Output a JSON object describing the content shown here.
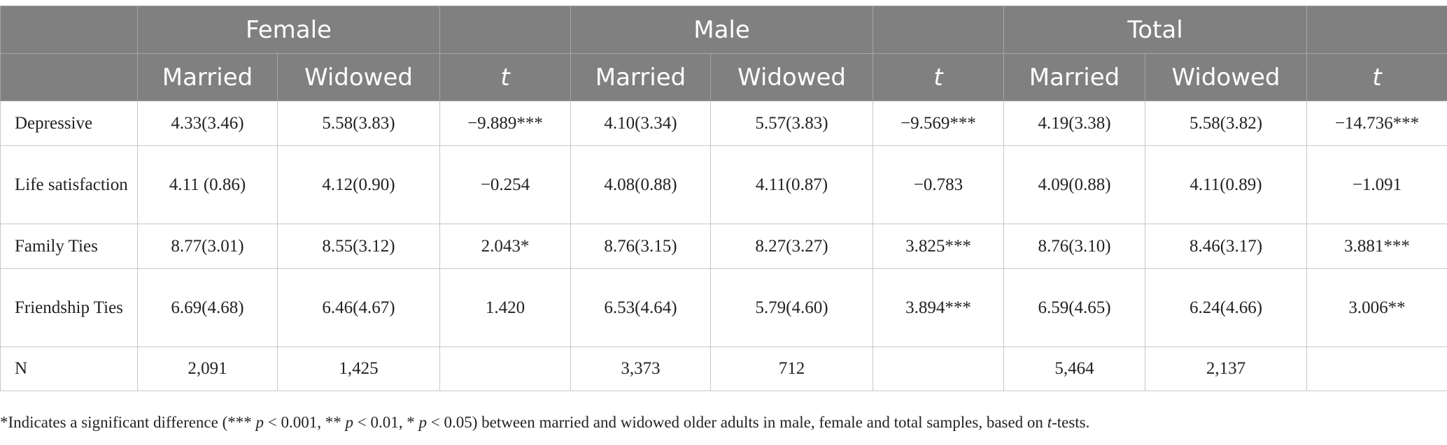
{
  "groups": [
    "Female",
    "Male",
    "Total"
  ],
  "sub": {
    "married": "Married",
    "widowed": "Widowed",
    "t": "t"
  },
  "rows": [
    {
      "label": "Depressive",
      "cells": [
        "4.33(3.46)",
        "5.58(3.83)",
        "−9.889***",
        "4.10(3.34)",
        "5.57(3.83)",
        "−9.569***",
        "4.19(3.38)",
        "5.58(3.82)",
        "−14.736***"
      ]
    },
    {
      "label": "Life satisfaction",
      "cells": [
        "4.11 (0.86)",
        "4.12(0.90)",
        "−0.254",
        "4.08(0.88)",
        "4.11(0.87)",
        "−0.783",
        "4.09(0.88)",
        "4.11(0.89)",
        "−1.091"
      ]
    },
    {
      "label": "Family Ties",
      "cells": [
        "8.77(3.01)",
        "8.55(3.12)",
        "2.043*",
        "8.76(3.15)",
        "8.27(3.27)",
        "3.825***",
        "8.76(3.10)",
        "8.46(3.17)",
        "3.881***"
      ]
    },
    {
      "label": "Friendship Ties",
      "cells": [
        "6.69(4.68)",
        "6.46(4.67)",
        "1.420",
        "6.53(4.64)",
        "5.79(4.60)",
        "3.894***",
        "6.59(4.65)",
        "6.24(4.66)",
        "3.006**"
      ]
    },
    {
      "label": "N",
      "cells": [
        "2,091",
        "1,425",
        "",
        "3,373",
        "712",
        "",
        "5,464",
        "2,137",
        ""
      ]
    }
  ],
  "footnote": {
    "a": "*Indicates a significant difference (*** ",
    "p1": "p",
    "b": " < 0.001, ** ",
    "p2": "p",
    "c": " < 0.01, * ",
    "p3": "p",
    "d": " < 0.05) between married and widowed older adults in male, female and total samples, based on ",
    "t": "t",
    "e": "-tests."
  }
}
